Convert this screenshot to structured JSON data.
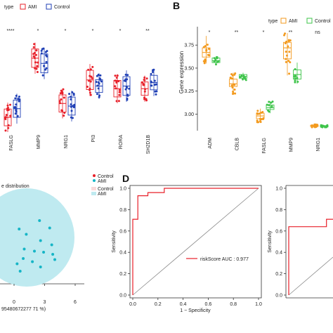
{
  "panels": {
    "b_letter": "B",
    "d_letter": "D"
  },
  "legend_a": {
    "title": "type",
    "ami": "AMI",
    "control": "Control"
  },
  "legend_b": {
    "title": "type",
    "ami": "AMI",
    "control": "Control"
  },
  "colors": {
    "ami_a": "#e8202a",
    "control_a": "#1f3fb5",
    "ami_b": "#f39a1e",
    "control_b": "#3ec44a",
    "roc": "#e8202a",
    "pca_fill": "#bfeaf0",
    "pca_point": "#16b5c6"
  },
  "pca": {
    "title": "e distribution",
    "legend1": [
      "Control",
      "AMI"
    ],
    "legend2": [
      "Control",
      "AMI"
    ],
    "xlabel": "95480672277 71 %)",
    "xticks": [
      "0",
      "3",
      "6"
    ]
  },
  "roc_main": {
    "legend": "riskScore AUC : 0.977",
    "ylabel": "Sensitivity",
    "xlabel": "1 − Specificity",
    "yticks": [
      "0.0",
      "0.2",
      "0.4",
      "0.6",
      "0.8",
      "1.0"
    ],
    "xticks": [
      "0.0",
      "0.2",
      "0.4",
      "0.6",
      "0.8",
      "1.0"
    ]
  },
  "roc_side": {
    "ylabel": "Sensitivity",
    "yticks": [
      "0.0",
      "0.2",
      "0.4",
      "0.6",
      "0.8",
      "1.0"
    ]
  },
  "chart_data": [
    {
      "panel": "A",
      "type": "box",
      "categories": [
        "FASLG",
        "MMP9",
        "NRG1",
        "PI3",
        "RORA",
        "SH2D1B"
      ],
      "significance": [
        "****",
        "*",
        "*",
        "*",
        "*",
        "**"
      ],
      "series": [
        {
          "name": "AMI",
          "median_frac": [
            0.12,
            0.8,
            0.28,
            0.55,
            0.45,
            0.45
          ]
        },
        {
          "name": "Control",
          "median_frac": [
            0.22,
            0.74,
            0.25,
            0.48,
            0.48,
            0.52
          ]
        }
      ]
    },
    {
      "panel": "B",
      "type": "box",
      "ylabel": "Gene expression",
      "yticks": [
        3.0,
        3.25,
        3.5,
        3.75
      ],
      "ylim": [
        2.82,
        3.95
      ],
      "categories": [
        "ADM",
        "CBLB",
        "FASLG",
        "MMP9",
        "NRG1"
      ],
      "significance": [
        "*",
        "**",
        "*",
        "**",
        "ns"
      ],
      "series": [
        {
          "name": "AMI",
          "q1": [
            3.62,
            3.3,
            2.95,
            3.6,
            2.865
          ],
          "median": [
            3.67,
            3.33,
            2.98,
            3.72,
            2.875
          ],
          "q3": [
            3.72,
            3.38,
            3.01,
            3.78,
            2.88
          ],
          "min": [
            3.55,
            3.22,
            2.91,
            3.42,
            2.855
          ],
          "max": [
            3.85,
            3.45,
            3.06,
            3.88,
            2.89
          ]
        },
        {
          "name": "Control",
          "q1": [
            3.56,
            3.39,
            3.05,
            3.38,
            2.86
          ],
          "median": [
            3.58,
            3.41,
            3.07,
            3.43,
            2.868
          ],
          "q3": [
            3.61,
            3.43,
            3.1,
            3.48,
            2.875
          ],
          "min": [
            3.53,
            3.37,
            3.01,
            3.33,
            2.855
          ],
          "max": [
            3.63,
            3.45,
            3.14,
            3.56,
            2.88
          ]
        }
      ]
    },
    {
      "panel": "D",
      "type": "line",
      "series": [
        {
          "name": "riskScore AUC : 0.977",
          "x": [
            0,
            0,
            0.04,
            0.04,
            0.12,
            0.12,
            0.25,
            0.25,
            1.0
          ],
          "y": [
            0,
            0.71,
            0.71,
            0.93,
            0.93,
            0.96,
            0.96,
            1.0,
            1.0
          ]
        }
      ],
      "xlim": [
        0,
        1
      ],
      "ylim": [
        0,
        1
      ]
    },
    {
      "panel": "right",
      "type": "line",
      "series": [
        {
          "x": [
            0,
            0,
            0.3,
            0.3,
            0.6
          ],
          "y": [
            0,
            0.64,
            0.64,
            0.71,
            0.71
          ]
        }
      ],
      "ylim": [
        0,
        1
      ]
    },
    {
      "panel": "C",
      "type": "scatter",
      "xticks": [
        0,
        3,
        6
      ],
      "points": [
        [
          0.5,
          0.8
        ],
        [
          2.5,
          1.6
        ],
        [
          3.5,
          0.9
        ],
        [
          1.2,
          0.3
        ],
        [
          2.6,
          -0.3
        ],
        [
          3.7,
          -0.7
        ],
        [
          1.0,
          -1.1
        ],
        [
          2.0,
          -1.3
        ],
        [
          2.9,
          -1.4
        ],
        [
          3.8,
          -1.6
        ],
        [
          0.9,
          -2.0
        ],
        [
          1.8,
          -2.3
        ],
        [
          4.0,
          -2.1
        ],
        [
          0.3,
          -2.5
        ],
        [
          2.6,
          -2.8
        ],
        [
          0.6,
          -3.2
        ]
      ]
    }
  ]
}
